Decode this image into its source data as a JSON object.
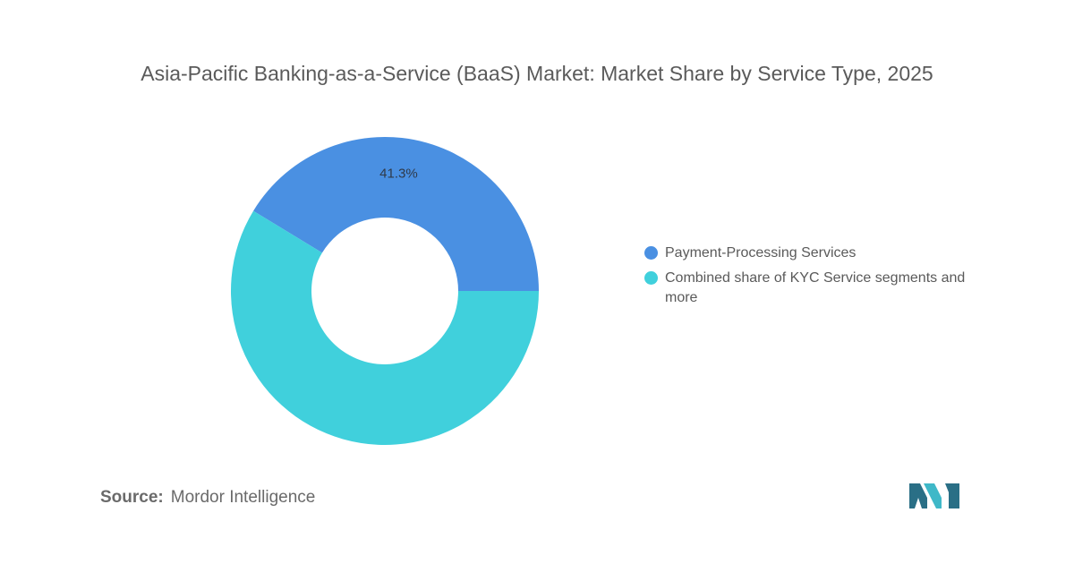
{
  "chart_data": {
    "type": "pie",
    "title": "Asia-Pacific Banking-as-a-Service (BaaS) Market: Market Share by Service Type, 2025",
    "donut": true,
    "labels": [
      "Payment-Processing Services",
      "Combined share of KYC Service segments and more"
    ],
    "values": [
      41.3,
      58.7
    ],
    "data_labels": [
      "41.3%",
      ""
    ],
    "colors": [
      "#4a90e2",
      "#40d0dc"
    ],
    "legend_position": "right"
  },
  "source": {
    "label": "Source:",
    "value": "Mordor Intelligence"
  },
  "logo": {
    "icon": "mordor-intelligence-logo",
    "colors": [
      "#2a6f86",
      "#3fb8c8"
    ]
  }
}
